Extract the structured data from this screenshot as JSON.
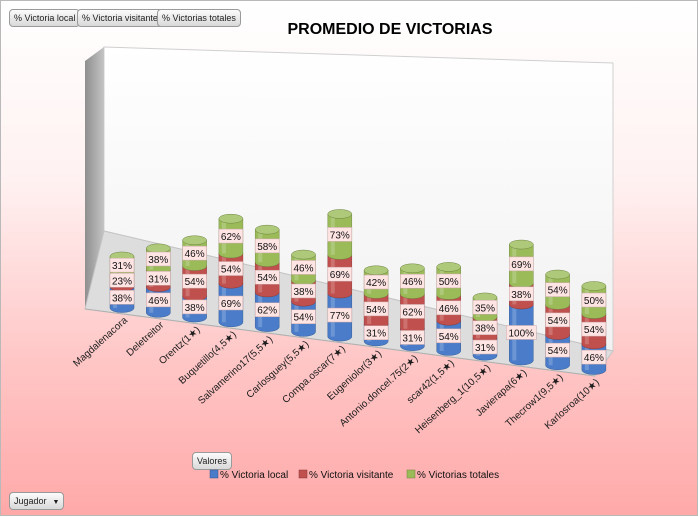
{
  "field_buttons": [
    "% Victoria local",
    "% Victoria visitante",
    "% Victorias totales"
  ],
  "values_button": "Valores",
  "row_field": {
    "label": "Jugador",
    "icon": "dropdown-arrow-icon"
  },
  "colors": {
    "local": "#4a7cc9",
    "visitante": "#c0504d",
    "totales": "#9bbb59"
  },
  "chart_data": {
    "type": "bar",
    "subtype": "3d-stacked-column",
    "title": "PROMEDIO DE VICTORIAS",
    "categories": [
      "Magdalenacora",
      "Deletreitor",
      "Orentz(1★)",
      "Buquetillo(4,5★)",
      "Salvamerino17(5,5★)",
      "Carlosguey(5,5★)",
      "Compa.oscar(7★)",
      "Eugeniolor(3★)",
      "Antonio.doncel.75(2★)",
      "scar42(1,5★)",
      "Heisenberg_1(10,5★)",
      "Javierapa(6★)",
      "Thecrow1(9,5★)",
      "Karlosroa(10★)"
    ],
    "series": [
      {
        "name": "% Victoria local",
        "values": [
          38,
          46,
          38,
          69,
          62,
          54,
          77,
          31,
          31,
          54,
          31,
          100,
          54,
          46
        ]
      },
      {
        "name": "% Victoria visitante",
        "values": [
          23,
          31,
          54,
          54,
          54,
          38,
          69,
          54,
          62,
          46,
          38,
          38,
          54,
          54
        ]
      },
      {
        "name": "% Victorias totales",
        "values": [
          31,
          38,
          46,
          62,
          58,
          46,
          73,
          42,
          46,
          50,
          35,
          69,
          54,
          50
        ]
      }
    ],
    "unit": "%",
    "legend_position": "bottom",
    "grid": false
  }
}
